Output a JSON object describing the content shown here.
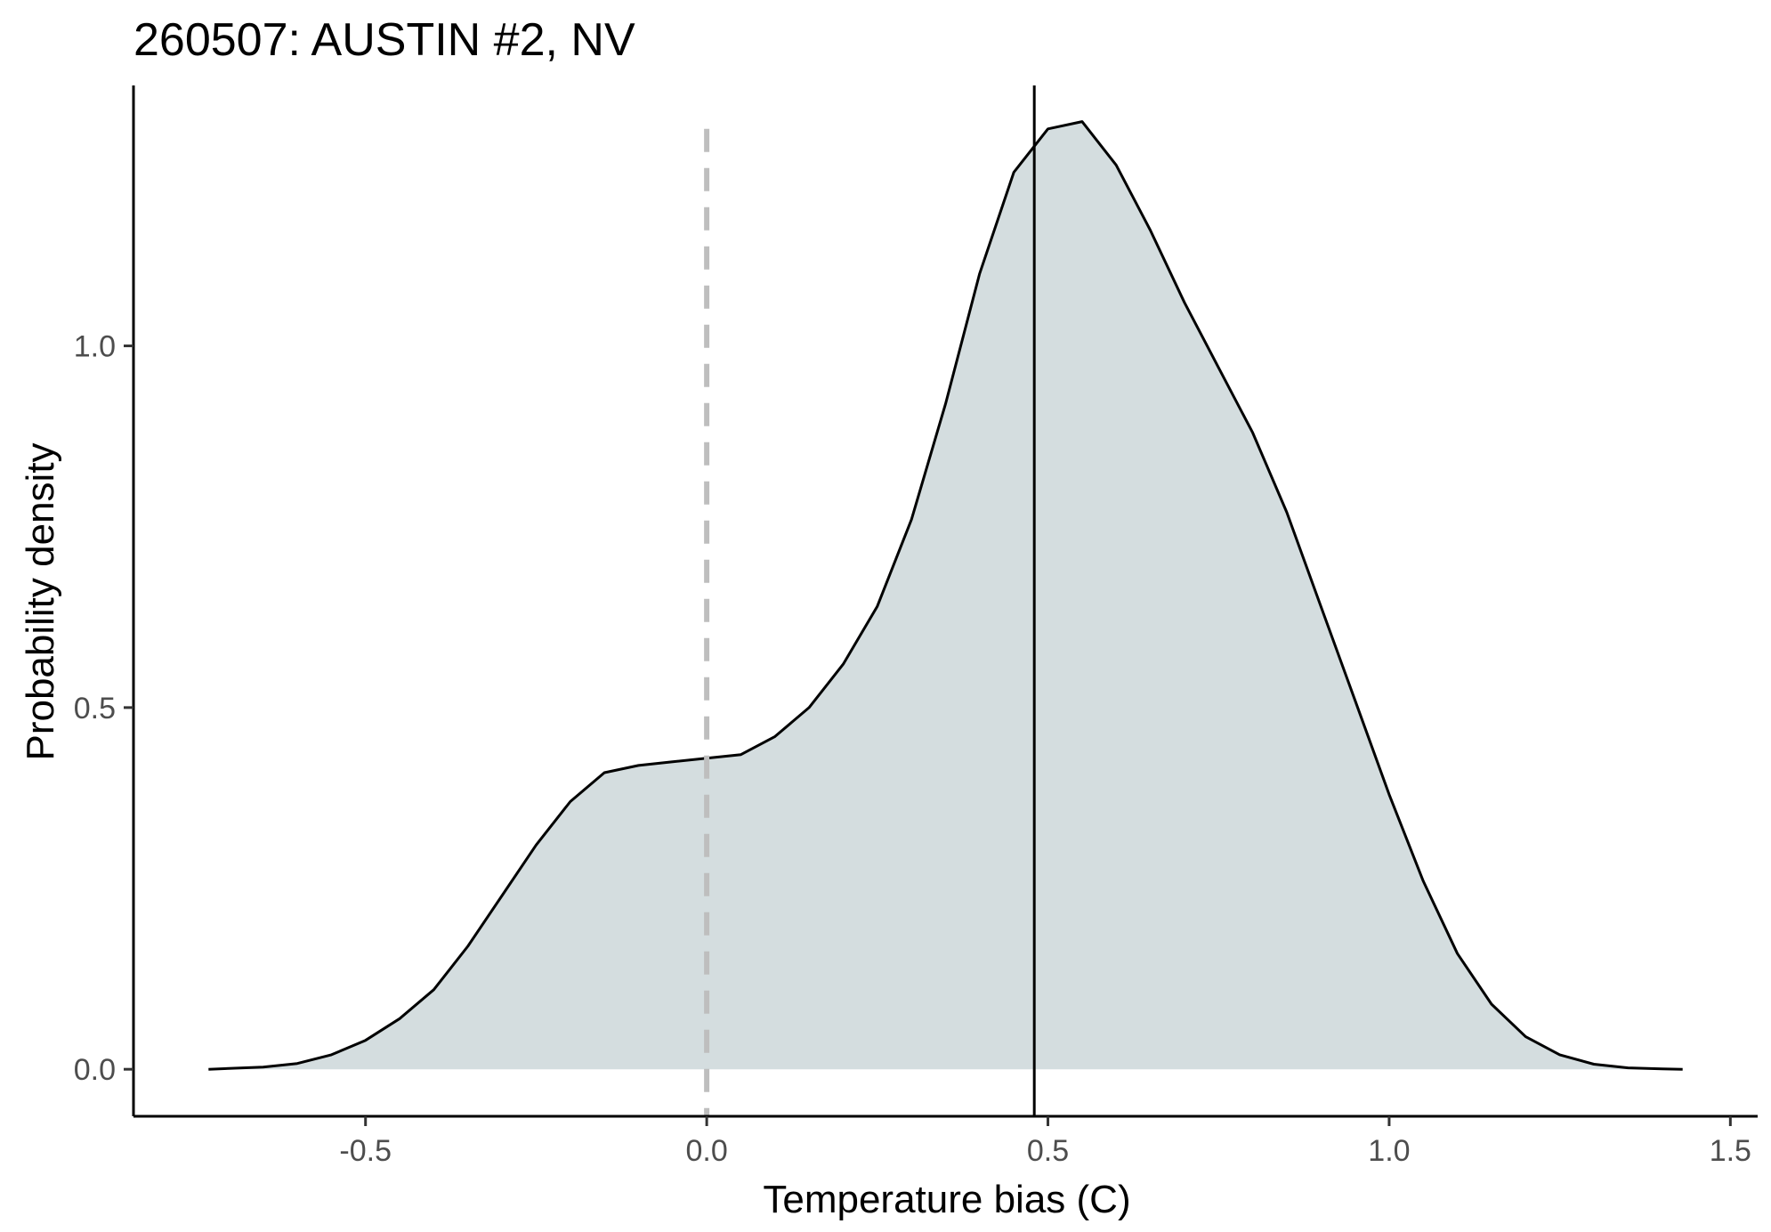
{
  "chart_data": {
    "type": "area",
    "title": "260507: AUSTIN #2, NV",
    "xlabel": "Temperature bias (C)",
    "ylabel": "Probability density",
    "xlim": [
      -0.84,
      1.54
    ],
    "ylim": [
      -0.065,
      1.36
    ],
    "x_ticks": [
      -0.5,
      0.0,
      0.5,
      1.0,
      1.5
    ],
    "x_tick_labels": [
      "-0.5",
      "0.0",
      "0.5",
      "1.0",
      "1.5"
    ],
    "y_ticks": [
      0.0,
      0.5,
      1.0
    ],
    "y_tick_labels": [
      "0.0",
      "0.5",
      "1.0"
    ],
    "grid": false,
    "fill_color": "#d4dddf",
    "line_color": "#000000",
    "reference_lines": [
      {
        "x": 0.0,
        "style": "dashed",
        "color": "#bebebe"
      },
      {
        "x": 0.48,
        "style": "solid",
        "color": "#000000"
      }
    ],
    "series": [
      {
        "x": [
          -0.73,
          -0.65,
          -0.6,
          -0.55,
          -0.5,
          -0.45,
          -0.4,
          -0.35,
          -0.3,
          -0.25,
          -0.2,
          -0.15,
          -0.1,
          -0.05,
          0.0,
          0.05,
          0.1,
          0.15,
          0.2,
          0.25,
          0.3,
          0.35,
          0.4,
          0.45,
          0.5,
          0.55,
          0.6,
          0.65,
          0.7,
          0.75,
          0.8,
          0.85,
          0.9,
          0.95,
          1.0,
          1.05,
          1.1,
          1.15,
          1.2,
          1.25,
          1.3,
          1.35,
          1.4,
          1.43
        ],
        "y": [
          0.0,
          0.003,
          0.008,
          0.02,
          0.04,
          0.07,
          0.11,
          0.17,
          0.24,
          0.31,
          0.37,
          0.41,
          0.42,
          0.425,
          0.43,
          0.435,
          0.46,
          0.5,
          0.56,
          0.64,
          0.76,
          0.92,
          1.1,
          1.24,
          1.3,
          1.31,
          1.25,
          1.16,
          1.06,
          0.97,
          0.88,
          0.77,
          0.64,
          0.51,
          0.38,
          0.26,
          0.16,
          0.09,
          0.045,
          0.02,
          0.007,
          0.002,
          0.0005,
          0.0
        ]
      }
    ]
  }
}
